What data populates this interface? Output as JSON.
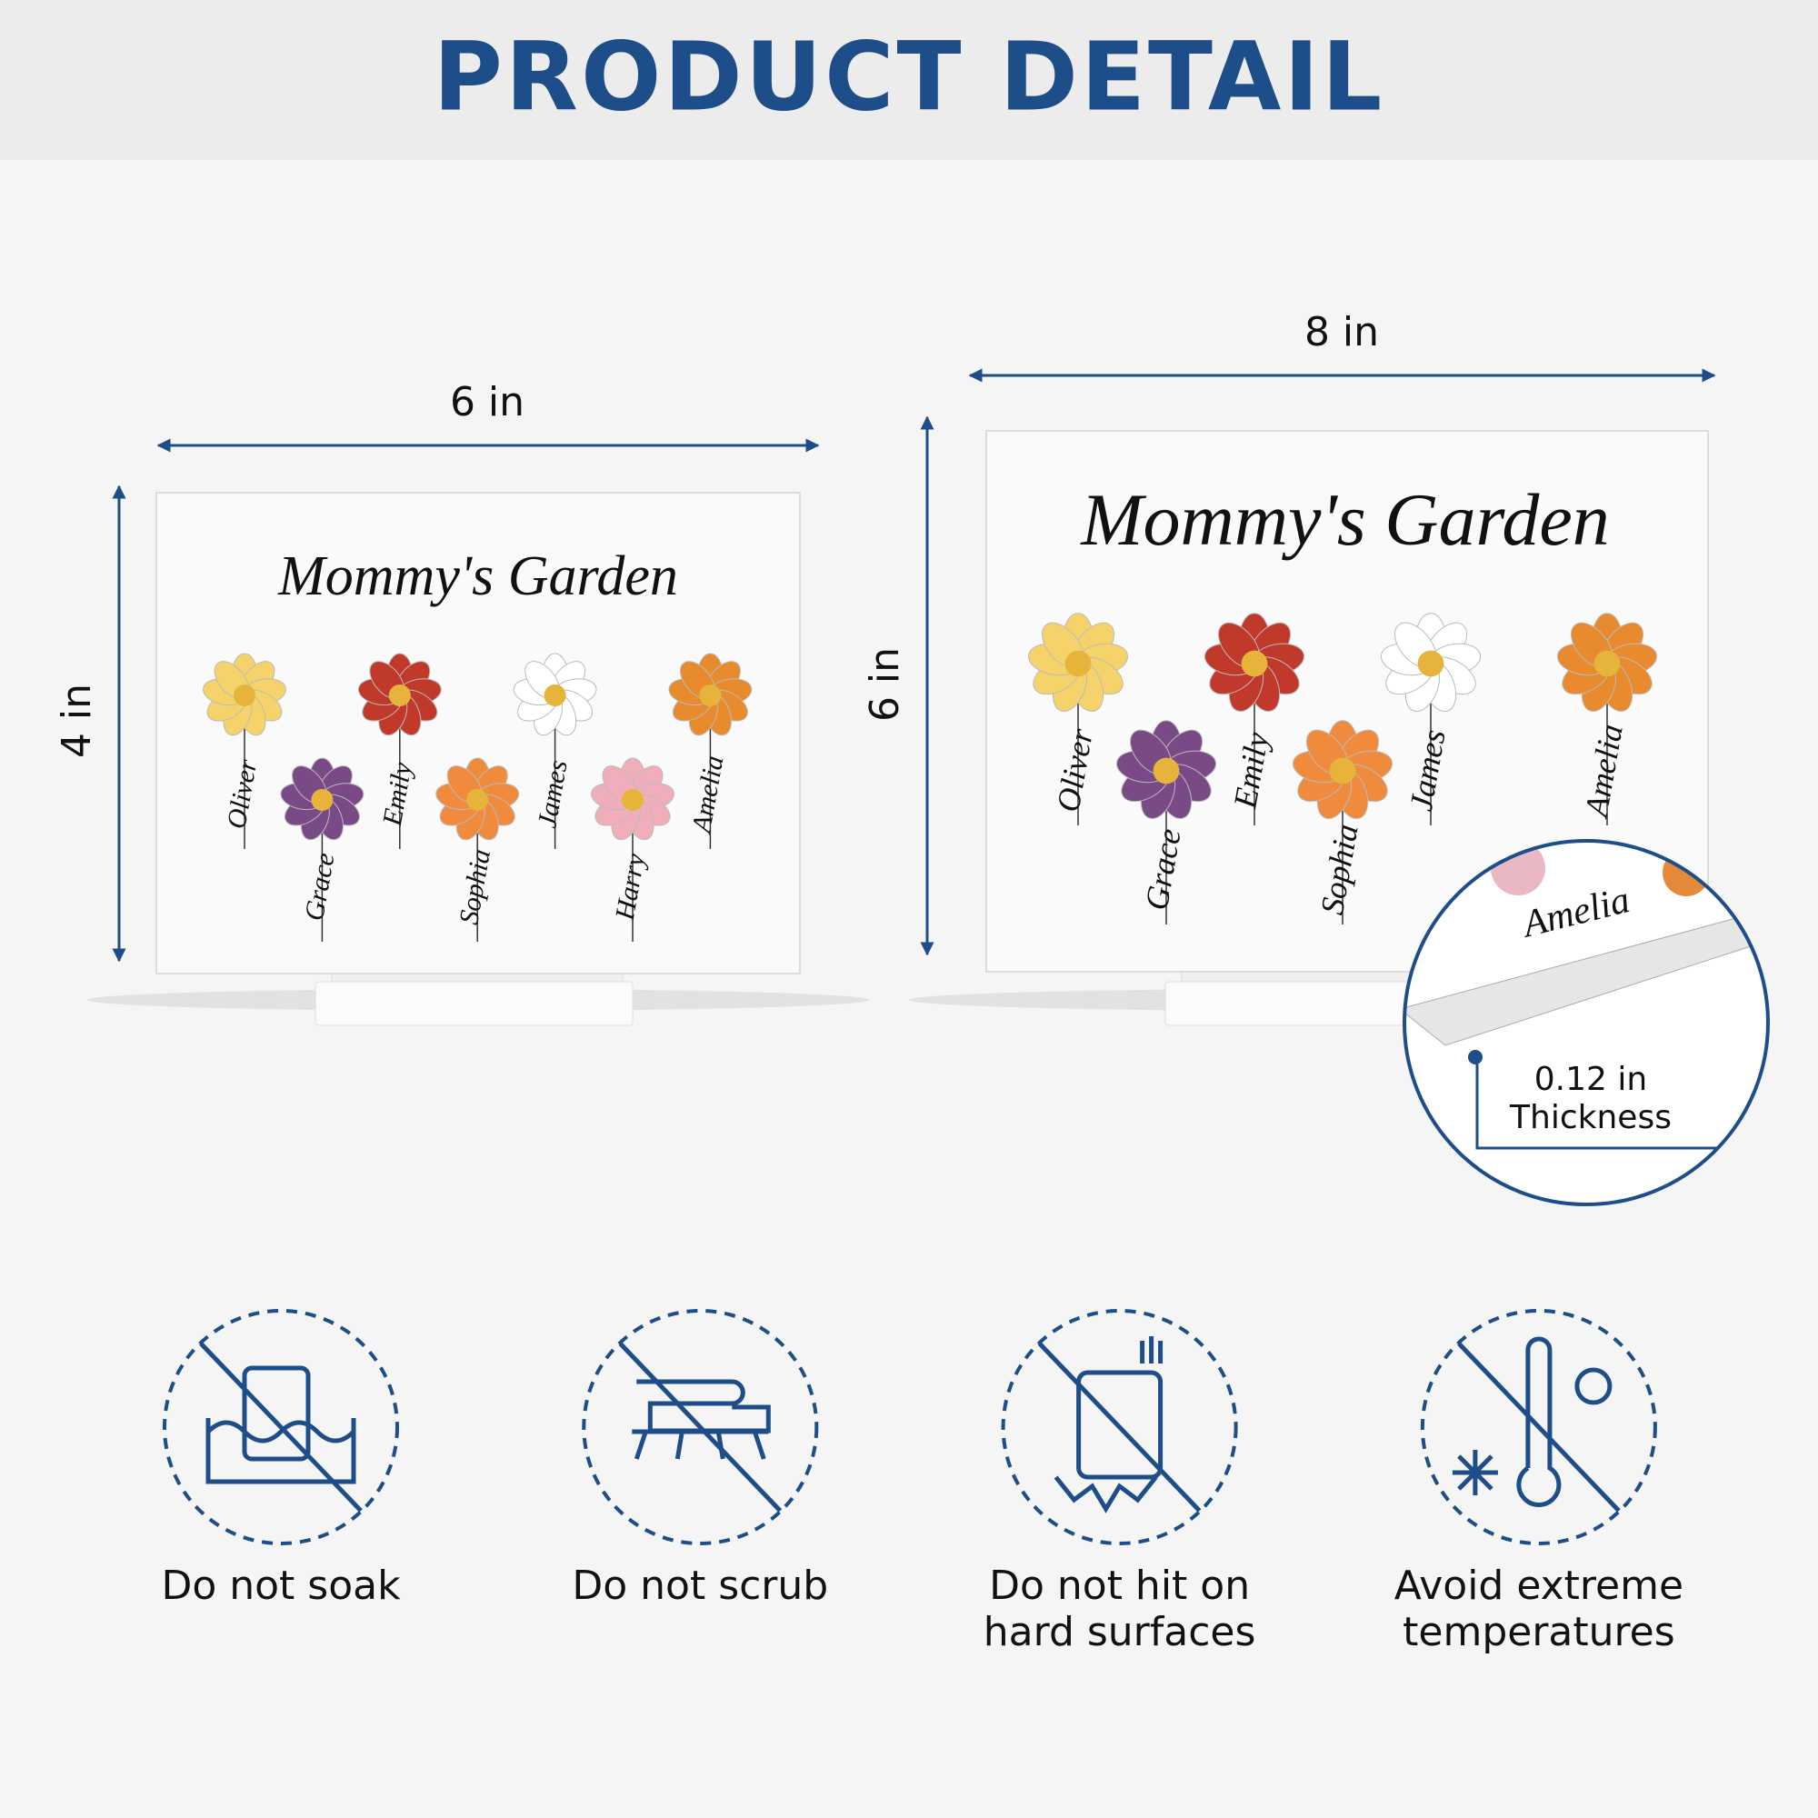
{
  "header": {
    "title": "PRODUCT DETAIL"
  },
  "products": [
    {
      "width_label": "6 in",
      "height_label": "4 in",
      "plaque": {
        "title": "Mommy's Garden",
        "names": [
          "Oliver",
          "Grace",
          "Emily",
          "Sophia",
          "James",
          "Harry",
          "Amelia"
        ]
      }
    },
    {
      "width_label": "8 in",
      "height_label": "6 in",
      "plaque": {
        "title": "Mommy's Garden",
        "names": [
          "Oliver",
          "Grace",
          "Emily",
          "Sophia",
          "James",
          "Amelia"
        ]
      }
    }
  ],
  "zoom": {
    "name": "Amelia",
    "thickness_value": "0.12 in",
    "thickness_label": "Thickness"
  },
  "care": [
    {
      "lines": [
        "Do not soak"
      ]
    },
    {
      "lines": [
        "Do not scrub"
      ]
    },
    {
      "lines": [
        "Do not hit on",
        "hard surfaces"
      ]
    },
    {
      "lines": [
        "Avoid extreme",
        "temperatures"
      ]
    }
  ]
}
